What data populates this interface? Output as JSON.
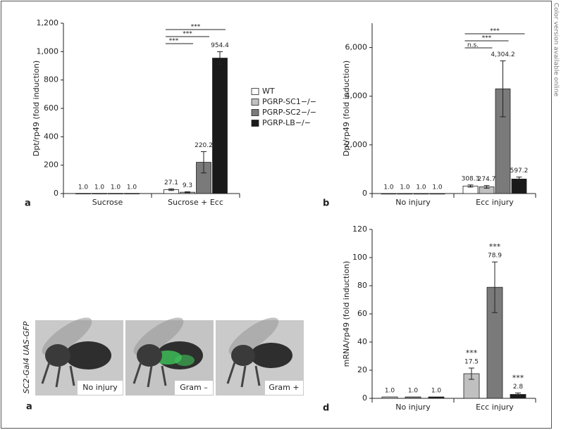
{
  "chart_data": [
    {
      "type": "bar",
      "panel_label": "a",
      "y_label": "Dpt/rp49 (fold induction)",
      "categories": [
        "Sucrose",
        "Sucrose + Ecc"
      ],
      "series": [
        {
          "name": "WT",
          "color": "#ffffff",
          "values": [
            1.0,
            27.1
          ],
          "value_labels": [
            "1.0",
            "27.1"
          ],
          "errors": [
            null,
            6
          ]
        },
        {
          "name": "PGRP-SC1−/−",
          "color": "#c0c0c0",
          "values": [
            1.0,
            9.3
          ],
          "value_labels": [
            "1.0",
            "9.3"
          ],
          "errors": [
            null,
            3
          ]
        },
        {
          "name": "PGRP-SC2−/−",
          "color": "#7a7a7a",
          "values": [
            1.0,
            220.2
          ],
          "value_labels": [
            "1.0",
            "220.2"
          ],
          "errors": [
            null,
            75
          ]
        },
        {
          "name": "PGRP-LB−/−",
          "color": "#1a1a1a",
          "values": [
            1.0,
            954.4
          ],
          "value_labels": [
            "1.0",
            "954.4"
          ],
          "errors": [
            null,
            45
          ]
        }
      ],
      "ylim": [
        0,
        1200
      ],
      "yticks": [
        0,
        200,
        400,
        600,
        800,
        {
          "value": 1000,
          "label": "1,000"
        },
        {
          "value": 1200,
          "label": "1,200"
        }
      ],
      "significance": [
        "***",
        "***",
        "***"
      ],
      "legend": "right"
    },
    {
      "type": "bar",
      "panel_label": "b",
      "y_label": "Dpt/rp49 (fold induction)",
      "categories": [
        "No injury",
        "Ecc injury"
      ],
      "series": [
        {
          "color": "#ffffff",
          "values": [
            1.0,
            308.3
          ],
          "value_labels": [
            "1.0",
            "308.3"
          ],
          "errors": [
            null,
            45
          ]
        },
        {
          "color": "#c0c0c0",
          "values": [
            1.0,
            274.7
          ],
          "value_labels": [
            "1.0",
            "274.7"
          ],
          "errors": [
            null,
            55
          ]
        },
        {
          "color": "#7a7a7a",
          "values": [
            1.0,
            4304.2
          ],
          "value_labels": [
            "1.0",
            "4,304.2"
          ],
          "errors": [
            null,
            1150
          ]
        },
        {
          "color": "#1a1a1a",
          "values": [
            1.0,
            597.2
          ],
          "value_labels": [
            "1.0",
            "597.2"
          ],
          "errors": [
            null,
            80
          ]
        }
      ],
      "ylim": [
        0,
        7000
      ],
      "yticks": [
        0,
        {
          "value": 2000,
          "label": "2,000"
        },
        {
          "value": 4000,
          "label": "4,000"
        },
        {
          "value": 6000,
          "label": "6,000"
        }
      ],
      "significance": [
        "***",
        "***",
        "n.s."
      ]
    },
    {
      "type": "bar",
      "panel_label": "d",
      "y_label": "mRNA/rp49 (fold induction)",
      "categories": [
        "No injury",
        "Ecc injury"
      ],
      "series": [
        {
          "color": "#c0c0c0",
          "values": [
            1.0,
            17.5
          ],
          "value_labels": [
            "1.0",
            "17.5"
          ],
          "errors": [
            null,
            4
          ]
        },
        {
          "color": "#7a7a7a",
          "values": [
            1.0,
            78.9
          ],
          "value_labels": [
            "1.0",
            "78.9"
          ],
          "errors": [
            null,
            18
          ]
        },
        {
          "color": "#1a1a1a",
          "values": [
            1.0,
            2.8
          ],
          "value_labels": [
            "1.0",
            "2.8"
          ],
          "errors": [
            null,
            1
          ]
        }
      ],
      "ylim": [
        0,
        120
      ],
      "yticks": [
        0,
        20,
        40,
        60,
        80,
        100,
        120
      ],
      "significance": [
        "***",
        "***",
        "***"
      ]
    }
  ],
  "image_panel": {
    "panel_label": "a",
    "side_label": "SC2-Gal4 UAS-GFP",
    "captions": [
      "No injury",
      "Gram –",
      "Gram +"
    ]
  },
  "side_note": "Color version available online"
}
